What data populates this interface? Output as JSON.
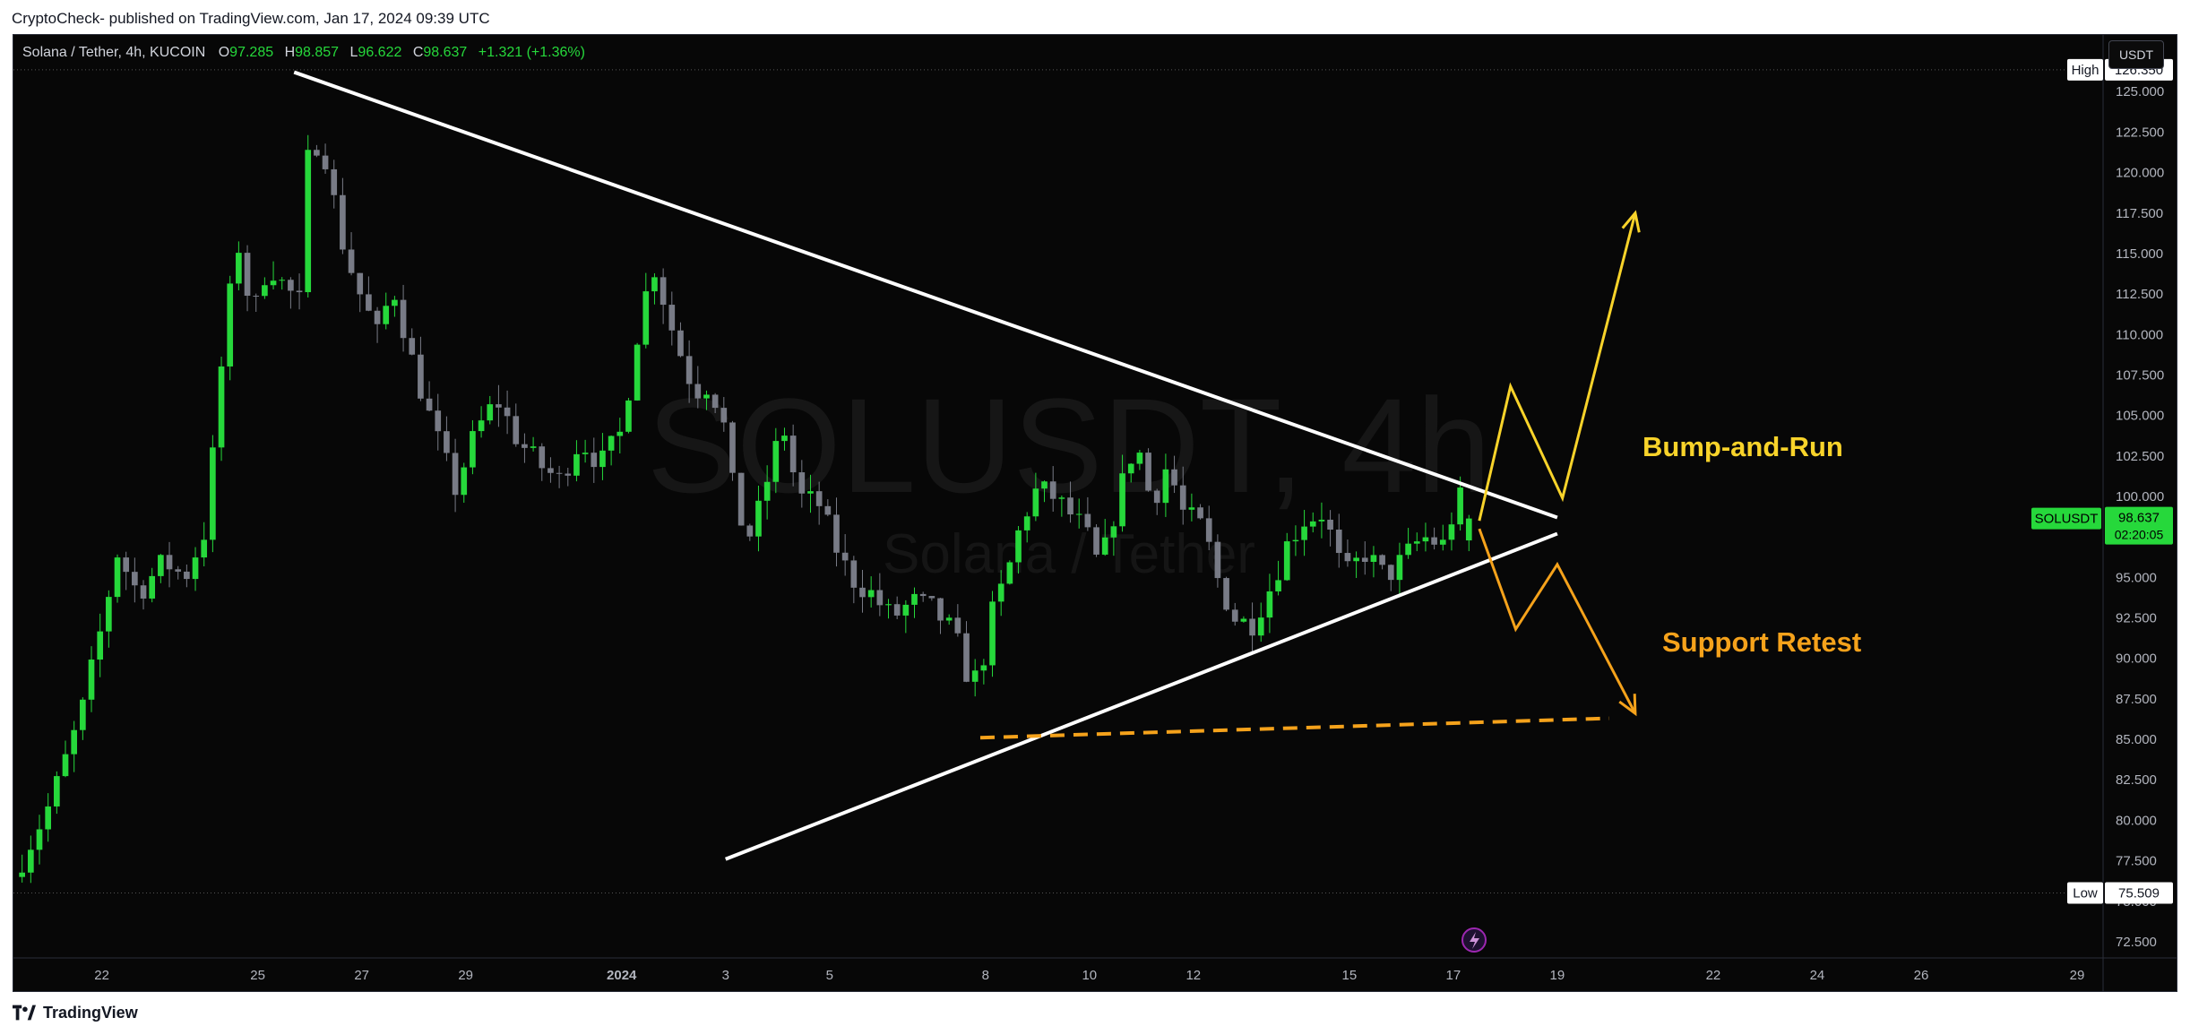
{
  "published_line": "CryptoCheck- published on TradingView.com, Jan 17, 2024 09:39 UTC",
  "legend": {
    "symbol": "Solana / Tether, 4h, KUCOIN",
    "o_label": "O",
    "o_value": "97.285",
    "h_label": "H",
    "h_value": "98.857",
    "l_label": "L",
    "l_value": "96.622",
    "c_label": "C",
    "c_value": "98.637",
    "change": "+1.321 (+1.36%)"
  },
  "currency_button": "USDT",
  "watermark": {
    "big": "SOLUSDT, 4h",
    "small": "Solana / Tether"
  },
  "footer_brand": "TradingView",
  "colors": {
    "background": "#070707",
    "up": "#26d83b",
    "down": "#787b86",
    "trendline": "#ffffff",
    "bump_run": "#f8d32a",
    "support": "#f5a21b",
    "price_badge": "#26d83b"
  },
  "chart_data": {
    "type": "candlestick",
    "title": "Solana / Tether, 4h, KUCOIN",
    "symbol": "SOLUSDT",
    "y_axis": {
      "ticks": [
        "72.500",
        "75.000",
        "77.500",
        "80.000",
        "82.500",
        "85.000",
        "87.500",
        "90.000",
        "92.500",
        "95.000",
        "97.500",
        "100.000",
        "102.500",
        "105.000",
        "107.500",
        "110.000",
        "112.500",
        "115.000",
        "117.500",
        "120.000",
        "122.500",
        "125.000",
        "127.500"
      ],
      "ylim": [
        71.5,
        128.5
      ],
      "high": {
        "label": "High",
        "value": "126.350"
      },
      "low": {
        "label": "Low",
        "value": "75.509"
      },
      "last": {
        "label": "SOLUSDT",
        "value": "98.637",
        "countdown": "02:20:05"
      }
    },
    "x_axis": {
      "ticks": [
        {
          "label": "22",
          "day": 22
        },
        {
          "label": "25",
          "day": 25
        },
        {
          "label": "27",
          "day": 27
        },
        {
          "label": "29",
          "day": 29
        },
        {
          "label": "2024",
          "day": 32
        },
        {
          "label": "3",
          "day": 34
        },
        {
          "label": "5",
          "day": 36
        },
        {
          "label": "8",
          "day": 39
        },
        {
          "label": "10",
          "day": 41
        },
        {
          "label": "12",
          "day": 43
        },
        {
          "label": "15",
          "day": 46
        },
        {
          "label": "17",
          "day": 48
        },
        {
          "label": "19",
          "day": 50
        },
        {
          "label": "22",
          "day": 53
        },
        {
          "label": "24",
          "day": 55
        },
        {
          "label": "26",
          "day": 57
        },
        {
          "label": "29",
          "day": 60
        }
      ],
      "xlim": [
        20.3,
        60.5
      ]
    },
    "close_path": [
      [
        20.3,
        76.5
      ],
      [
        21.0,
        81.0
      ],
      [
        21.6,
        86.5
      ],
      [
        22.0,
        92.0
      ],
      [
        22.3,
        96.5
      ],
      [
        22.7,
        94.0
      ],
      [
        23.2,
        96.0
      ],
      [
        23.6,
        95.0
      ],
      [
        24.0,
        98.0
      ],
      [
        24.3,
        108.0
      ],
      [
        24.6,
        116.0
      ],
      [
        24.9,
        111.0
      ],
      [
        25.2,
        114.5
      ],
      [
        25.5,
        113.0
      ],
      [
        25.8,
        112.0
      ],
      [
        26.0,
        122.5
      ],
      [
        26.3,
        121.0
      ],
      [
        26.6,
        116.0
      ],
      [
        26.9,
        113.0
      ],
      [
        27.3,
        110.0
      ],
      [
        27.6,
        113.0
      ],
      [
        28.0,
        108.0
      ],
      [
        28.4,
        104.0
      ],
      [
        28.8,
        100.5
      ],
      [
        29.2,
        104.0
      ],
      [
        29.6,
        106.0
      ],
      [
        30.0,
        103.5
      ],
      [
        30.4,
        102.0
      ],
      [
        30.8,
        101.0
      ],
      [
        31.2,
        103.5
      ],
      [
        31.6,
        102.0
      ],
      [
        32.0,
        104.0
      ],
      [
        32.3,
        110.0
      ],
      [
        32.6,
        114.5
      ],
      [
        33.0,
        110.0
      ],
      [
        33.4,
        106.5
      ],
      [
        33.7,
        107.0
      ],
      [
        34.0,
        104.0
      ],
      [
        34.2,
        99.0
      ],
      [
        34.5,
        97.5
      ],
      [
        34.8,
        101.0
      ],
      [
        35.1,
        104.5
      ],
      [
        35.4,
        100.0
      ],
      [
        35.8,
        99.5
      ],
      [
        36.1,
        97.0
      ],
      [
        36.4,
        95.0
      ],
      [
        36.8,
        94.0
      ],
      [
        37.2,
        92.5
      ],
      [
        37.6,
        93.5
      ],
      [
        38.0,
        93.0
      ],
      [
        38.4,
        91.5
      ],
      [
        38.7,
        88.5
      ],
      [
        38.9,
        89.0
      ],
      [
        39.1,
        92.5
      ],
      [
        39.4,
        95.0
      ],
      [
        39.7,
        98.5
      ],
      [
        40.0,
        100.5
      ],
      [
        40.3,
        100.0
      ],
      [
        40.6,
        99.0
      ],
      [
        40.9,
        98.0
      ],
      [
        41.2,
        95.5
      ],
      [
        41.6,
        100.5
      ],
      [
        41.9,
        103.5
      ],
      [
        42.2,
        99.5
      ],
      [
        42.5,
        102.0
      ],
      [
        42.8,
        99.0
      ],
      [
        43.2,
        98.0
      ],
      [
        43.5,
        94.5
      ],
      [
        43.8,
        92.5
      ],
      [
        44.1,
        92.0
      ],
      [
        44.5,
        94.5
      ],
      [
        44.8,
        97.0
      ],
      [
        45.1,
        98.5
      ],
      [
        45.5,
        99.0
      ],
      [
        45.9,
        95.0
      ],
      [
        46.3,
        96.5
      ],
      [
        46.7,
        95.0
      ],
      [
        47.0,
        96.0
      ],
      [
        47.4,
        97.5
      ],
      [
        47.8,
        97.0
      ],
      [
        48.1,
        100.0
      ],
      [
        48.4,
        98.637
      ]
    ],
    "drawings": {
      "descending_trendline": {
        "from": [
          25.7,
          126.2
        ],
        "to": [
          50.0,
          98.7
        ]
      },
      "ascending_trendline": {
        "from": [
          34.0,
          77.6
        ],
        "to": [
          50.0,
          97.7
        ]
      },
      "support_dashed": {
        "from": [
          38.9,
          85.1
        ],
        "to": [
          51.0,
          86.3
        ]
      },
      "bump_and_run_path": [
        [
          48.5,
          98.5
        ],
        [
          49.1,
          106.8
        ],
        [
          50.1,
          99.9
        ],
        [
          51.5,
          117.5
        ]
      ],
      "support_retest_path": [
        [
          48.5,
          98.0
        ],
        [
          49.2,
          91.8
        ],
        [
          50.0,
          95.8
        ],
        [
          51.5,
          86.6
        ]
      ]
    },
    "annotations": [
      {
        "text": "Bump-and-Run",
        "color": "#f8d32a"
      },
      {
        "text": "Support Retest",
        "color": "#f5a21b"
      }
    ]
  }
}
